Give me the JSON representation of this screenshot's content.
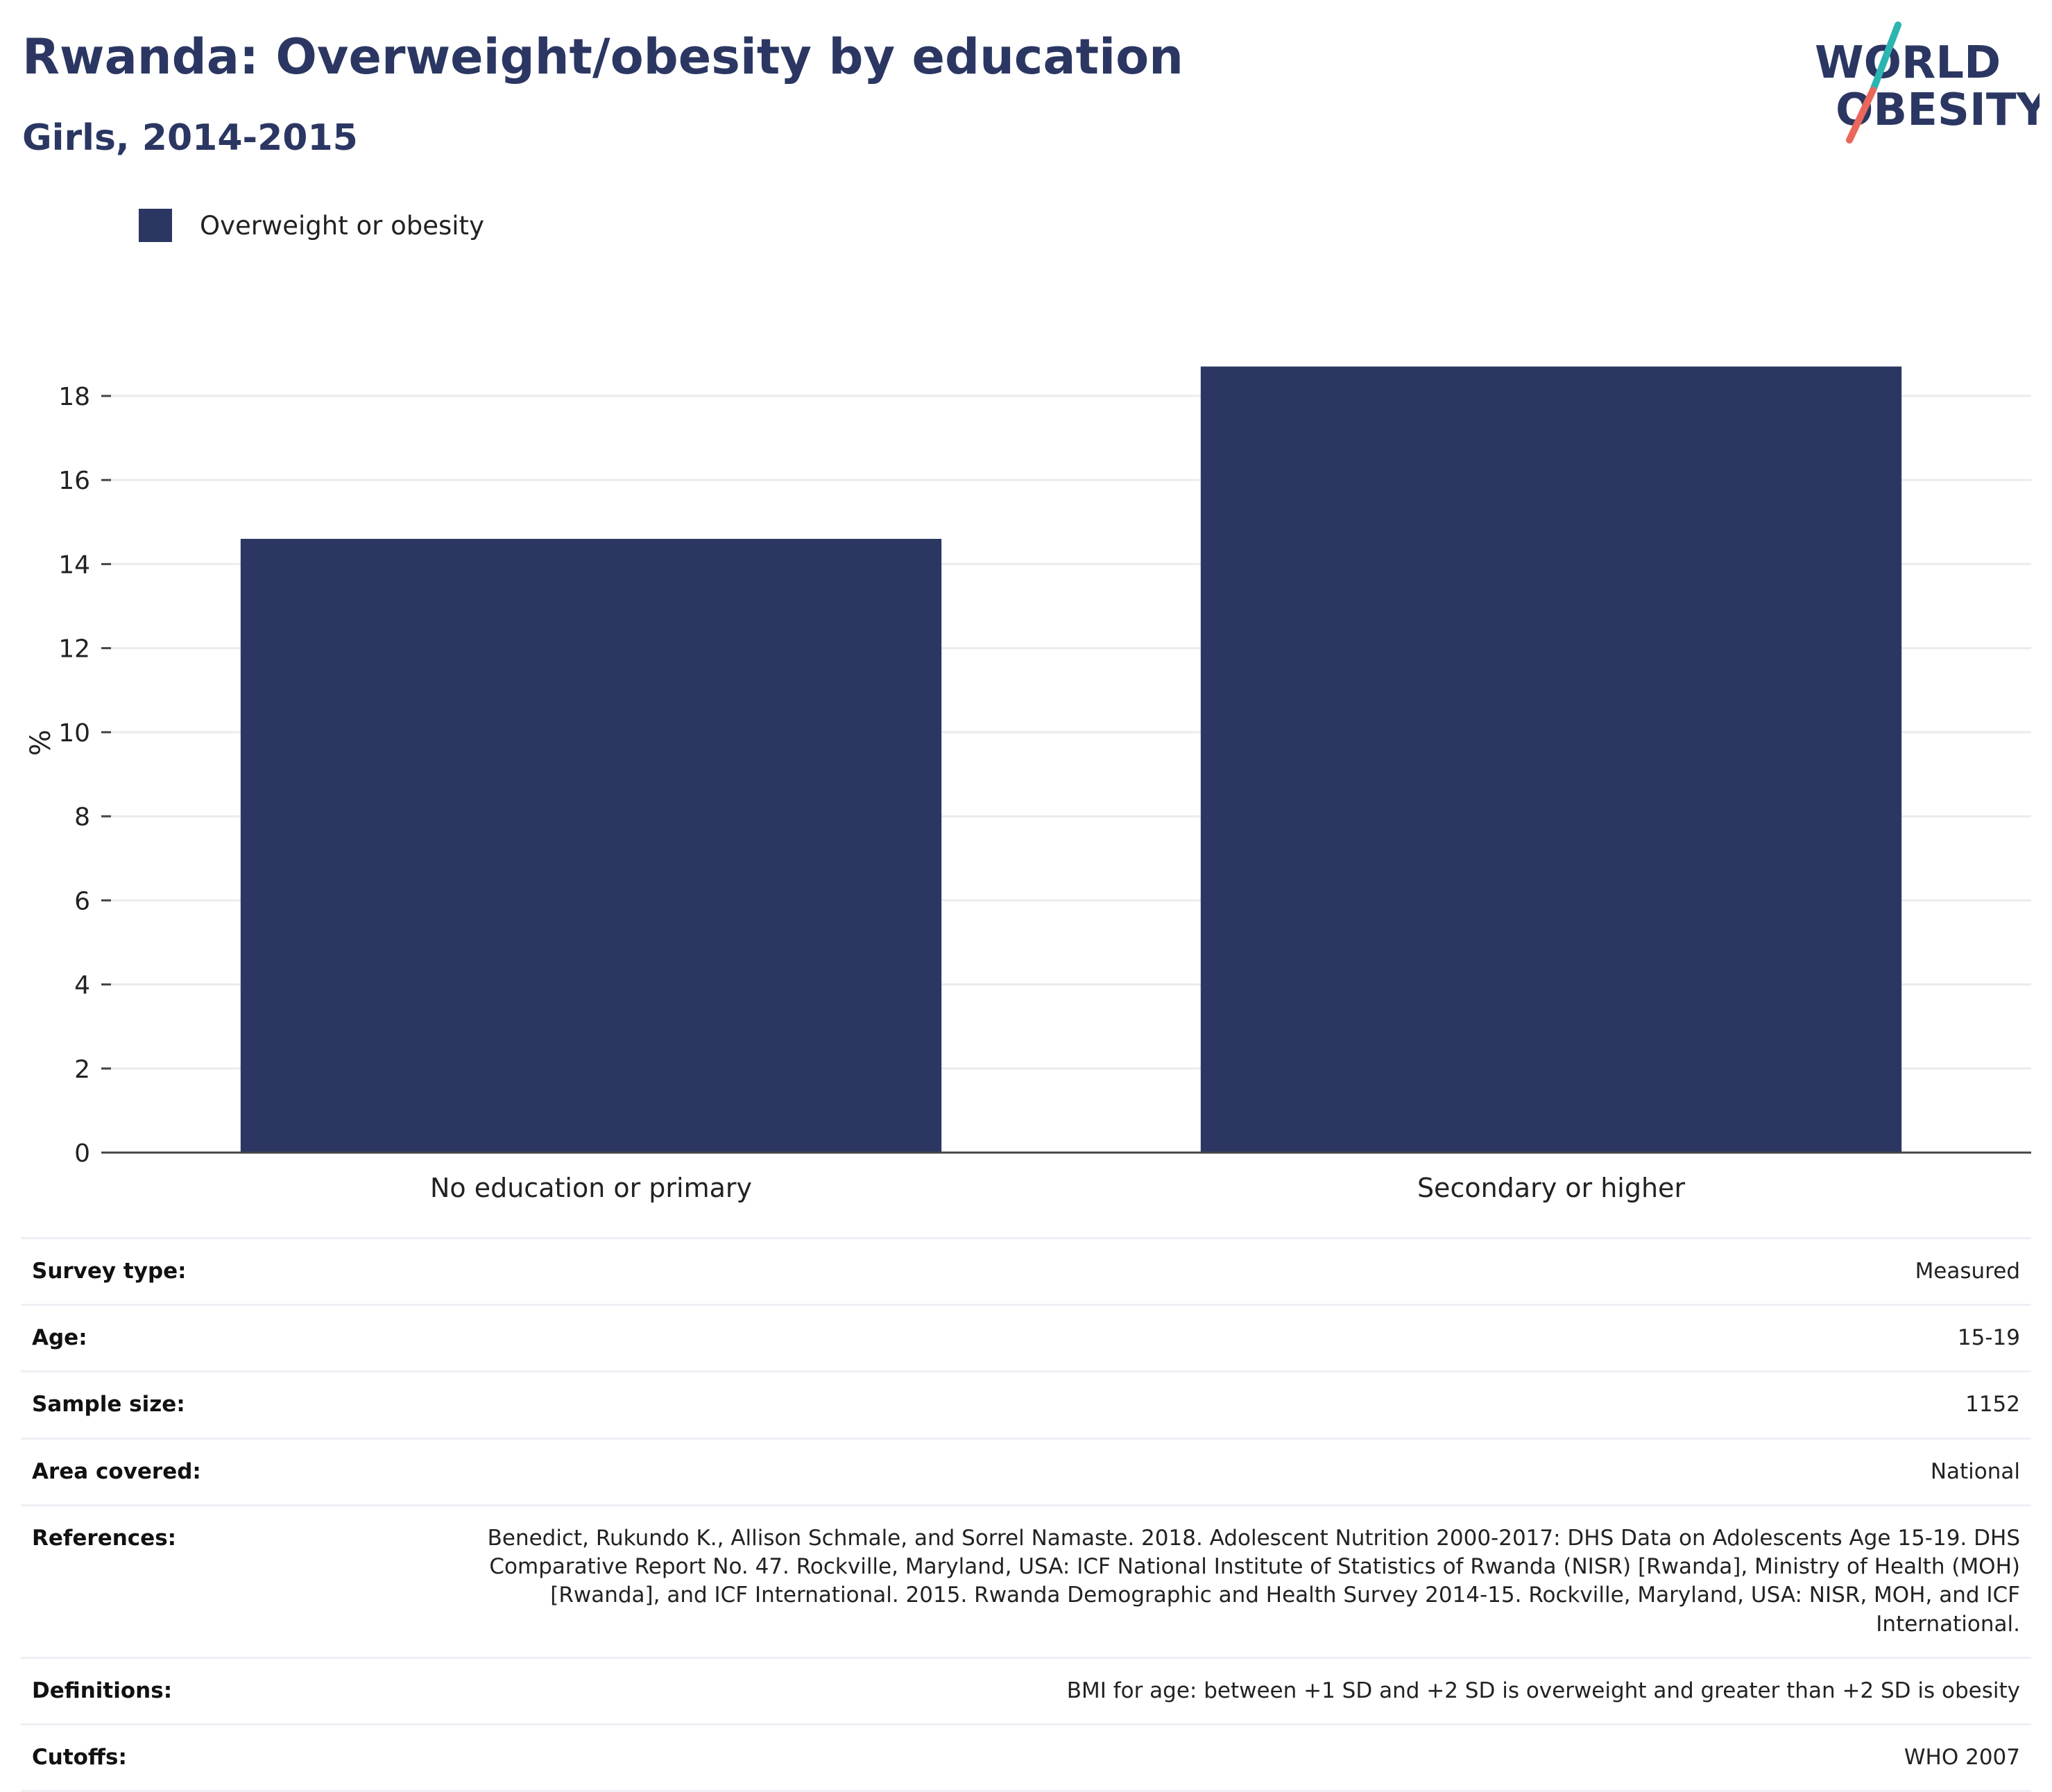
{
  "header": {
    "title": "Rwanda: Overweight/obesity by education",
    "subtitle": "Girls, 2014-2015"
  },
  "logo": {
    "line1": "WORLD",
    "line2": "OBESITY",
    "accent_teal": "#2bb5b0",
    "accent_coral": "#e9685b"
  },
  "legend": {
    "label": "Overweight or obesity",
    "color": "#2b3762"
  },
  "chart_data": {
    "type": "bar",
    "title": "Rwanda: Overweight/obesity by education",
    "subtitle": "Girls, 2014-2015",
    "categories": [
      "No education or primary",
      "Secondary or higher"
    ],
    "series": [
      {
        "name": "Overweight or obesity",
        "values": [
          14.6,
          18.7
        ],
        "color": "#2b3762"
      }
    ],
    "ylabel": "%",
    "xlabel": "",
    "ylim": [
      0,
      19.5
    ],
    "yticks": [
      0,
      2,
      4,
      6,
      8,
      10,
      12,
      14,
      16,
      18
    ],
    "grid": true,
    "legend_position": "top-left"
  },
  "metadata": [
    {
      "label": "Survey type:",
      "value": "Measured"
    },
    {
      "label": "Age:",
      "value": "15-19"
    },
    {
      "label": "Sample size:",
      "value": "1152"
    },
    {
      "label": "Area covered:",
      "value": "National"
    },
    {
      "label": "References:",
      "value": "Benedict, Rukundo K., Allison Schmale, and Sorrel Namaste. 2018. Adolescent Nutrition 2000-2017: DHS Data on Adolescents Age 15-19. DHS Comparative Report No. 47. Rockville, Maryland, USA: ICF National Institute of Statistics of Rwanda (NISR) [Rwanda], Ministry of Health (MOH) [Rwanda], and ICF International. 2015. Rwanda Demographic and Health Survey 2014-15. Rockville, Maryland, USA: NISR, MOH, and ICF International."
    },
    {
      "label": "Definitions:",
      "value": "BMI for age: between +1 SD and +2 SD is overweight and greater than +2 SD is obesity"
    },
    {
      "label": "Cutoffs:",
      "value": "WHO 2007"
    }
  ]
}
